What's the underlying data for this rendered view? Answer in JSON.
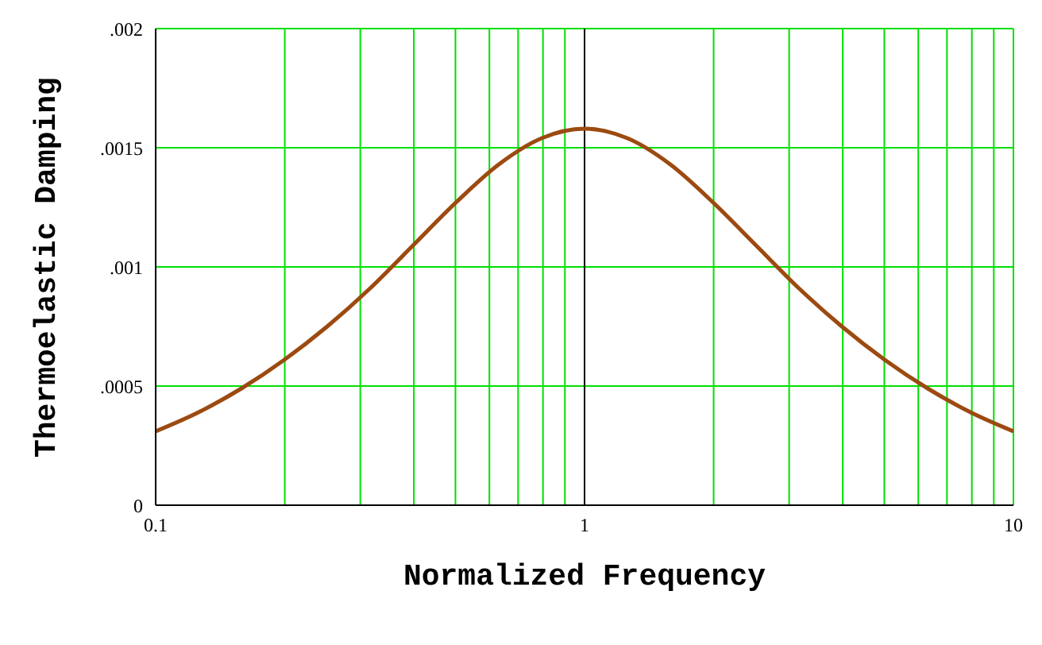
{
  "chart_data": {
    "type": "line",
    "xlabel": "Normalized Frequency",
    "ylabel": "Thermoelastic Damping",
    "log": "x",
    "x": [
      0.1,
      0.1259,
      0.1585,
      0.1995,
      0.2512,
      0.3162,
      0.3981,
      0.5012,
      0.631,
      0.7943,
      1,
      1.259,
      1.585,
      1.995,
      2.512,
      3.162,
      3.981,
      5.012,
      6.31,
      7.943,
      10
    ],
    "series": [
      {
        "color": "#9c4a10",
        "values": [
          0.00031,
          0.00039,
          0.00049,
          0.00061,
          0.00075,
          0.00091,
          0.00109,
          0.00127,
          0.00143,
          0.00154,
          0.00158,
          0.00154,
          0.00143,
          0.00127,
          0.00109,
          0.00091,
          0.00075,
          0.00061,
          0.00049,
          0.00039,
          0.00031
        ]
      }
    ],
    "xlim": [
      0.1,
      10
    ],
    "xticks": [
      0.1,
      {
        "value": 0.2,
        "label": null
      },
      {
        "value": 0.3,
        "label": null
      },
      {
        "value": 0.4,
        "label": null
      },
      {
        "value": 0.5,
        "label": null
      },
      {
        "value": 0.6,
        "label": null
      },
      {
        "value": 0.7,
        "label": null
      },
      {
        "value": 0.8,
        "label": null
      },
      {
        "value": 0.9,
        "label": null
      },
      1,
      {
        "value": 2,
        "label": null
      },
      {
        "value": 3,
        "label": null
      },
      {
        "value": 4,
        "label": null
      },
      {
        "value": 5,
        "label": null
      },
      {
        "value": 6,
        "label": null
      },
      {
        "value": 7,
        "label": null
      },
      {
        "value": 8,
        "label": null
      },
      {
        "value": 9,
        "label": null
      },
      10
    ],
    "ylim": [
      0,
      0.002
    ],
    "yticks": [
      0,
      {
        "value": 0.0005,
        "label": ".0005"
      },
      {
        "value": 0.001,
        "label": ".001"
      },
      {
        "value": 0.0015,
        "label": ".0015"
      },
      {
        "value": 0.002,
        "label": ".002"
      }
    ],
    "ref_lines": [
      {
        "axis": "x",
        "value": 1,
        "color": "#000000"
      }
    ],
    "grid": true,
    "marker": "none",
    "line_style": "solid"
  }
}
